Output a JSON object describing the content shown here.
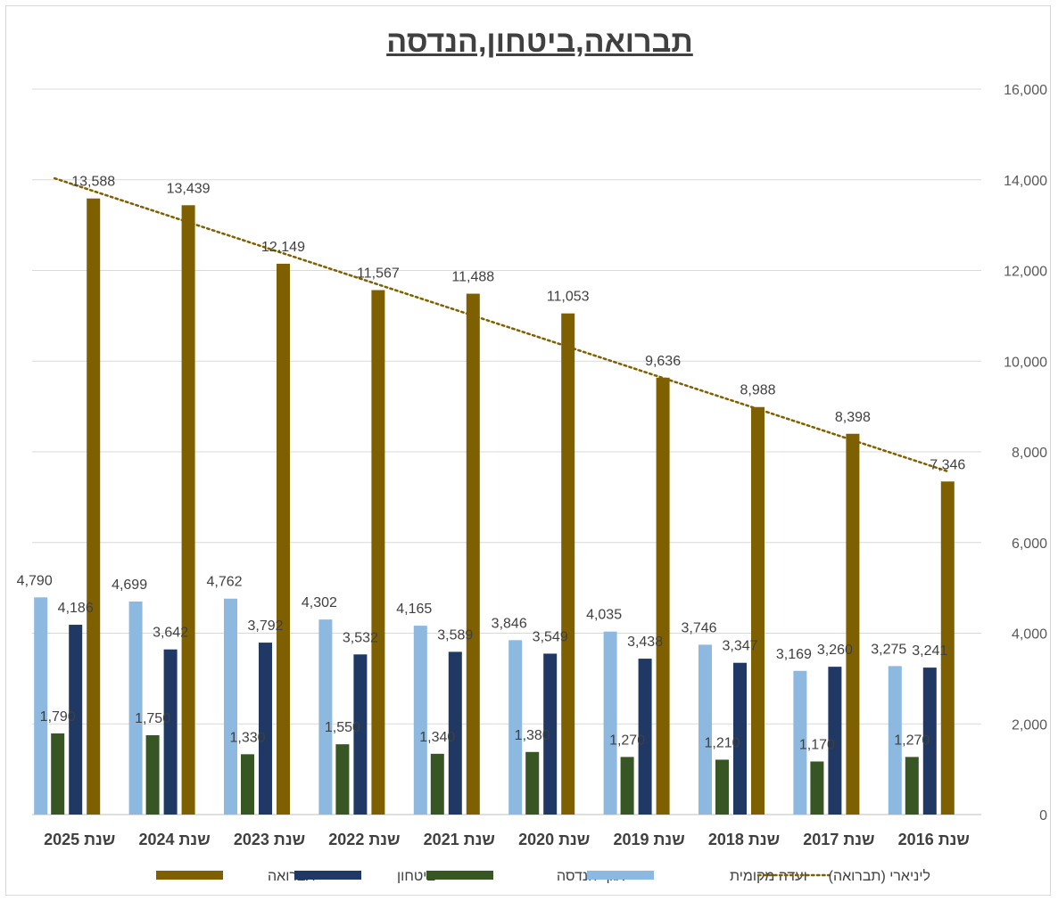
{
  "chart_data": {
    "type": "bar",
    "title": "תברואה,ביטחון,הנדסה",
    "categories": [
      "שנת 2025",
      "שנת 2024",
      "שנת 2023",
      "שנת 2022",
      "שנת 2021",
      "שנת 2020",
      "שנת 2019",
      "שנת 2018",
      "שנת 2017",
      "שנת 2016"
    ],
    "series": [
      {
        "name": "ועדה מקומית",
        "color": "#8db8e0",
        "values": [
          4790,
          4699,
          4762,
          4302,
          4165,
          3846,
          4035,
          3746,
          3169,
          3275
        ],
        "labels": [
          "4,790",
          "4,699",
          "4,762",
          "4,302",
          "4,165",
          "3,846",
          "4,035",
          "3,746",
          "3,169",
          "3,275"
        ]
      },
      {
        "name": "אגף הנדסה",
        "color": "#375623",
        "values": [
          1790,
          1750,
          1330,
          1550,
          1340,
          1380,
          1270,
          1210,
          1170,
          1270
        ],
        "labels": [
          "1,790",
          "1,750",
          "1,330",
          "1,550",
          "1,340",
          "1,380",
          "1,270",
          "1,210",
          "1,170",
          "1,270"
        ]
      },
      {
        "name": "ביטחון",
        "color": "#1f3864",
        "values": [
          4186,
          3642,
          3792,
          3532,
          3589,
          3549,
          3438,
          3347,
          3260,
          3241
        ],
        "labels": [
          "4,186",
          "3,642",
          "3,792",
          "3,532",
          "3,589",
          "3,549",
          "3,438",
          "3,347",
          "3,260",
          "3,241"
        ]
      },
      {
        "name": "תברואה",
        "color": "#7f6000",
        "values": [
          13588,
          13439,
          12149,
          11567,
          11488,
          11053,
          9636,
          8988,
          8398,
          7346
        ],
        "labels": [
          "13,588",
          "13,439",
          "12,149",
          "11,567",
          "11,488",
          "11,053",
          "9,636",
          "8,988",
          "8,398",
          "7,346"
        ]
      }
    ],
    "trendline": {
      "name": "ליניארי (תברואה)",
      "series": "תברואה",
      "color": "#7f6000"
    },
    "y_ticks": [
      "0",
      "2,000",
      "4,000",
      "6,000",
      "8,000",
      "10,000",
      "12,000",
      "14,000",
      "16,000"
    ],
    "ylim": [
      0,
      16000
    ],
    "y_axis_position": "right",
    "grid": true,
    "legend": {
      "position": "bottom",
      "order": [
        "תברואה",
        "ביטחון",
        "אגף הנדסה",
        "ועדה מקומית",
        "ליניארי (תברואה)"
      ]
    }
  }
}
